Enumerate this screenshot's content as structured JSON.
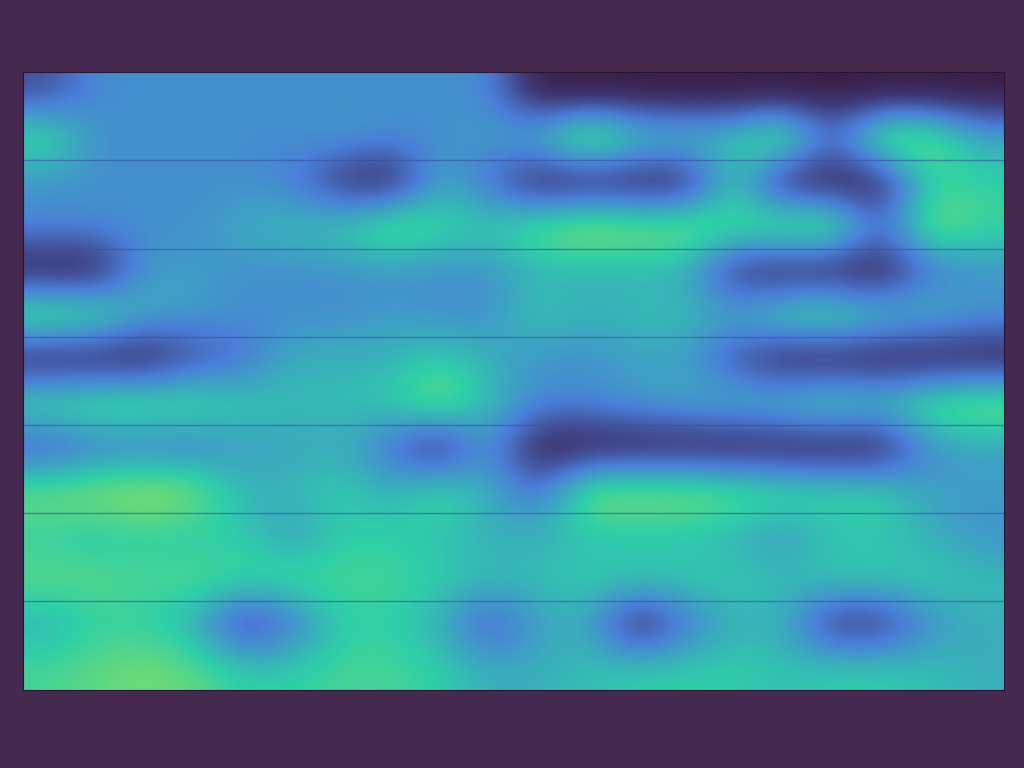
{
  "chart_data": {
    "type": "heatmap",
    "tick_labels": false,
    "color_range": [
      0,
      1
    ],
    "cells": [
      [
        0.2,
        0.4,
        0.4,
        0.4,
        0.4,
        0.4,
        0.4,
        0.4,
        0.4,
        0.4,
        0,
        0,
        0,
        0,
        0,
        0,
        0,
        0,
        0,
        0
      ],
      [
        0.7,
        0.4,
        0.4,
        0.4,
        0.4,
        0.4,
        0.45,
        0.4,
        0.4,
        0.45,
        0.55,
        0.9,
        0.65,
        0.6,
        0.6,
        0.85,
        0.3,
        0.85,
        0.8,
        0.5
      ],
      [
        0.4,
        0.4,
        0.4,
        0.4,
        0.4,
        0.35,
        0.1,
        0,
        0.5,
        0.3,
        0,
        0,
        0,
        0,
        0.6,
        0,
        0,
        0,
        0.6,
        0.6
      ],
      [
        0.4,
        0.4,
        0.4,
        0.4,
        0.5,
        0.55,
        0.6,
        0.8,
        0.65,
        0.6,
        0.75,
        0.85,
        0.8,
        0.8,
        0.7,
        0.8,
        0.85,
        0.3,
        0.8,
        0.65
      ],
      [
        0,
        0,
        0.45,
        0.45,
        0.4,
        0.4,
        0.4,
        0.4,
        0.4,
        0.4,
        0.5,
        0.5,
        0.5,
        0.5,
        0.1,
        0,
        0,
        0,
        0.3,
        0.4
      ],
      [
        0.8,
        0.75,
        0.5,
        0.45,
        0.4,
        0.4,
        0.4,
        0.45,
        0.4,
        0.4,
        0.6,
        0.5,
        0.55,
        0.55,
        0.5,
        0.7,
        0.75,
        0.6,
        0.55,
        0.45
      ],
      [
        0,
        0,
        0,
        0.2,
        0.3,
        0.5,
        0.5,
        0.5,
        0.6,
        0.5,
        0.4,
        0.4,
        0.45,
        0.45,
        0.2,
        0,
        0,
        0,
        0,
        0
      ],
      [
        0.7,
        0.75,
        0.75,
        0.7,
        0.6,
        0.55,
        0.55,
        0.6,
        0.8,
        0.55,
        0.4,
        0.4,
        0.45,
        0.5,
        0.55,
        0.6,
        0.7,
        0.6,
        0.75,
        0.8
      ],
      [
        0.2,
        0.3,
        0.3,
        0.3,
        0.45,
        0.45,
        0.5,
        0.3,
        0,
        0.45,
        0,
        0,
        0,
        0,
        0,
        0,
        0,
        0,
        0.4,
        0.45
      ],
      [
        0.75,
        0.8,
        0.85,
        0.8,
        0.5,
        0.55,
        0.6,
        0.5,
        0.7,
        0.5,
        0.3,
        0.8,
        0.8,
        0.8,
        0.75,
        0.7,
        0.65,
        0.65,
        0.45,
        0.45
      ],
      [
        0.6,
        0.55,
        0.6,
        0.55,
        0.6,
        0.4,
        0.6,
        0.6,
        0.55,
        0.5,
        0.5,
        0.55,
        0.55,
        0.55,
        0.5,
        0.4,
        0.55,
        0.55,
        0.5,
        0.4
      ],
      [
        0.7,
        0.7,
        0.65,
        0.7,
        0.65,
        0.7,
        0.65,
        0.65,
        0.6,
        0.55,
        0.55,
        0.6,
        0.6,
        0.6,
        0.6,
        0.55,
        0.6,
        0.6,
        0.6,
        0.55
      ],
      [
        0.5,
        0.6,
        0.6,
        0.5,
        0.1,
        0.3,
        0.6,
        0.6,
        0.5,
        0.2,
        0.45,
        0.5,
        0,
        0.3,
        0.5,
        0.5,
        0.1,
        0.1,
        0.4,
        0.5
      ],
      [
        0.65,
        0.7,
        0.75,
        0.7,
        0.6,
        0.6,
        0.65,
        0.65,
        0.6,
        0.5,
        0.5,
        0.55,
        0.6,
        0.6,
        0.6,
        0.55,
        0.6,
        0.6,
        0.55,
        0.5
      ]
    ]
  }
}
